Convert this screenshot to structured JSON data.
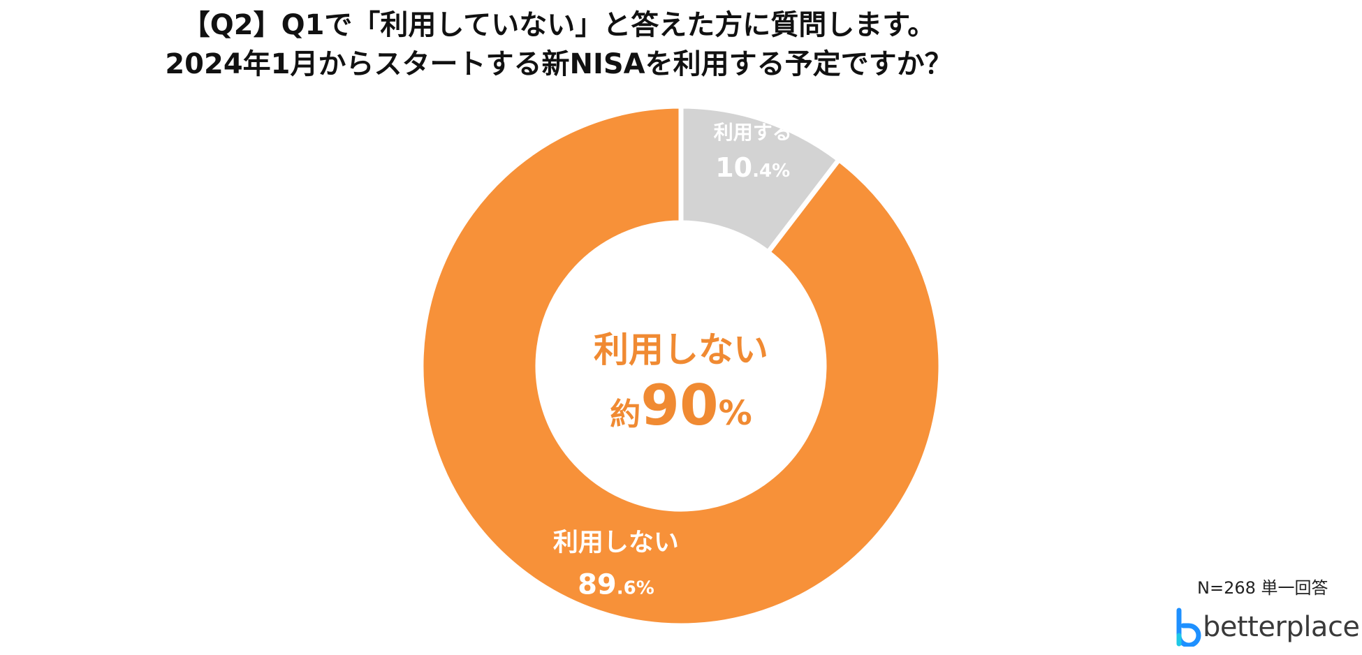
{
  "title": {
    "line1": "【Q2】Q1で「利用していない」と答えた方に質問します。",
    "line2": "2024年1月からスタートする新NISAを利用する予定ですか？"
  },
  "chart_data": {
    "type": "pie",
    "slices": [
      {
        "label": "利用する",
        "value": 10.4,
        "value_main": "10",
        "value_decimal": ".4",
        "value_unit": "%",
        "color": "#d3d3d3"
      },
      {
        "label": "利用しない",
        "value": 89.6,
        "value_main": "89",
        "value_decimal": ".6",
        "value_unit": "%",
        "color": "#f79139"
      }
    ],
    "center": {
      "line1": "利用しない",
      "prefix": "約",
      "number": "90",
      "unit": "%",
      "color": "#f08a32"
    }
  },
  "note": "N=268 単一回答",
  "brand": {
    "name": "betterplace",
    "icon": "betterplace-logo-icon",
    "color": "#1e90ff"
  }
}
